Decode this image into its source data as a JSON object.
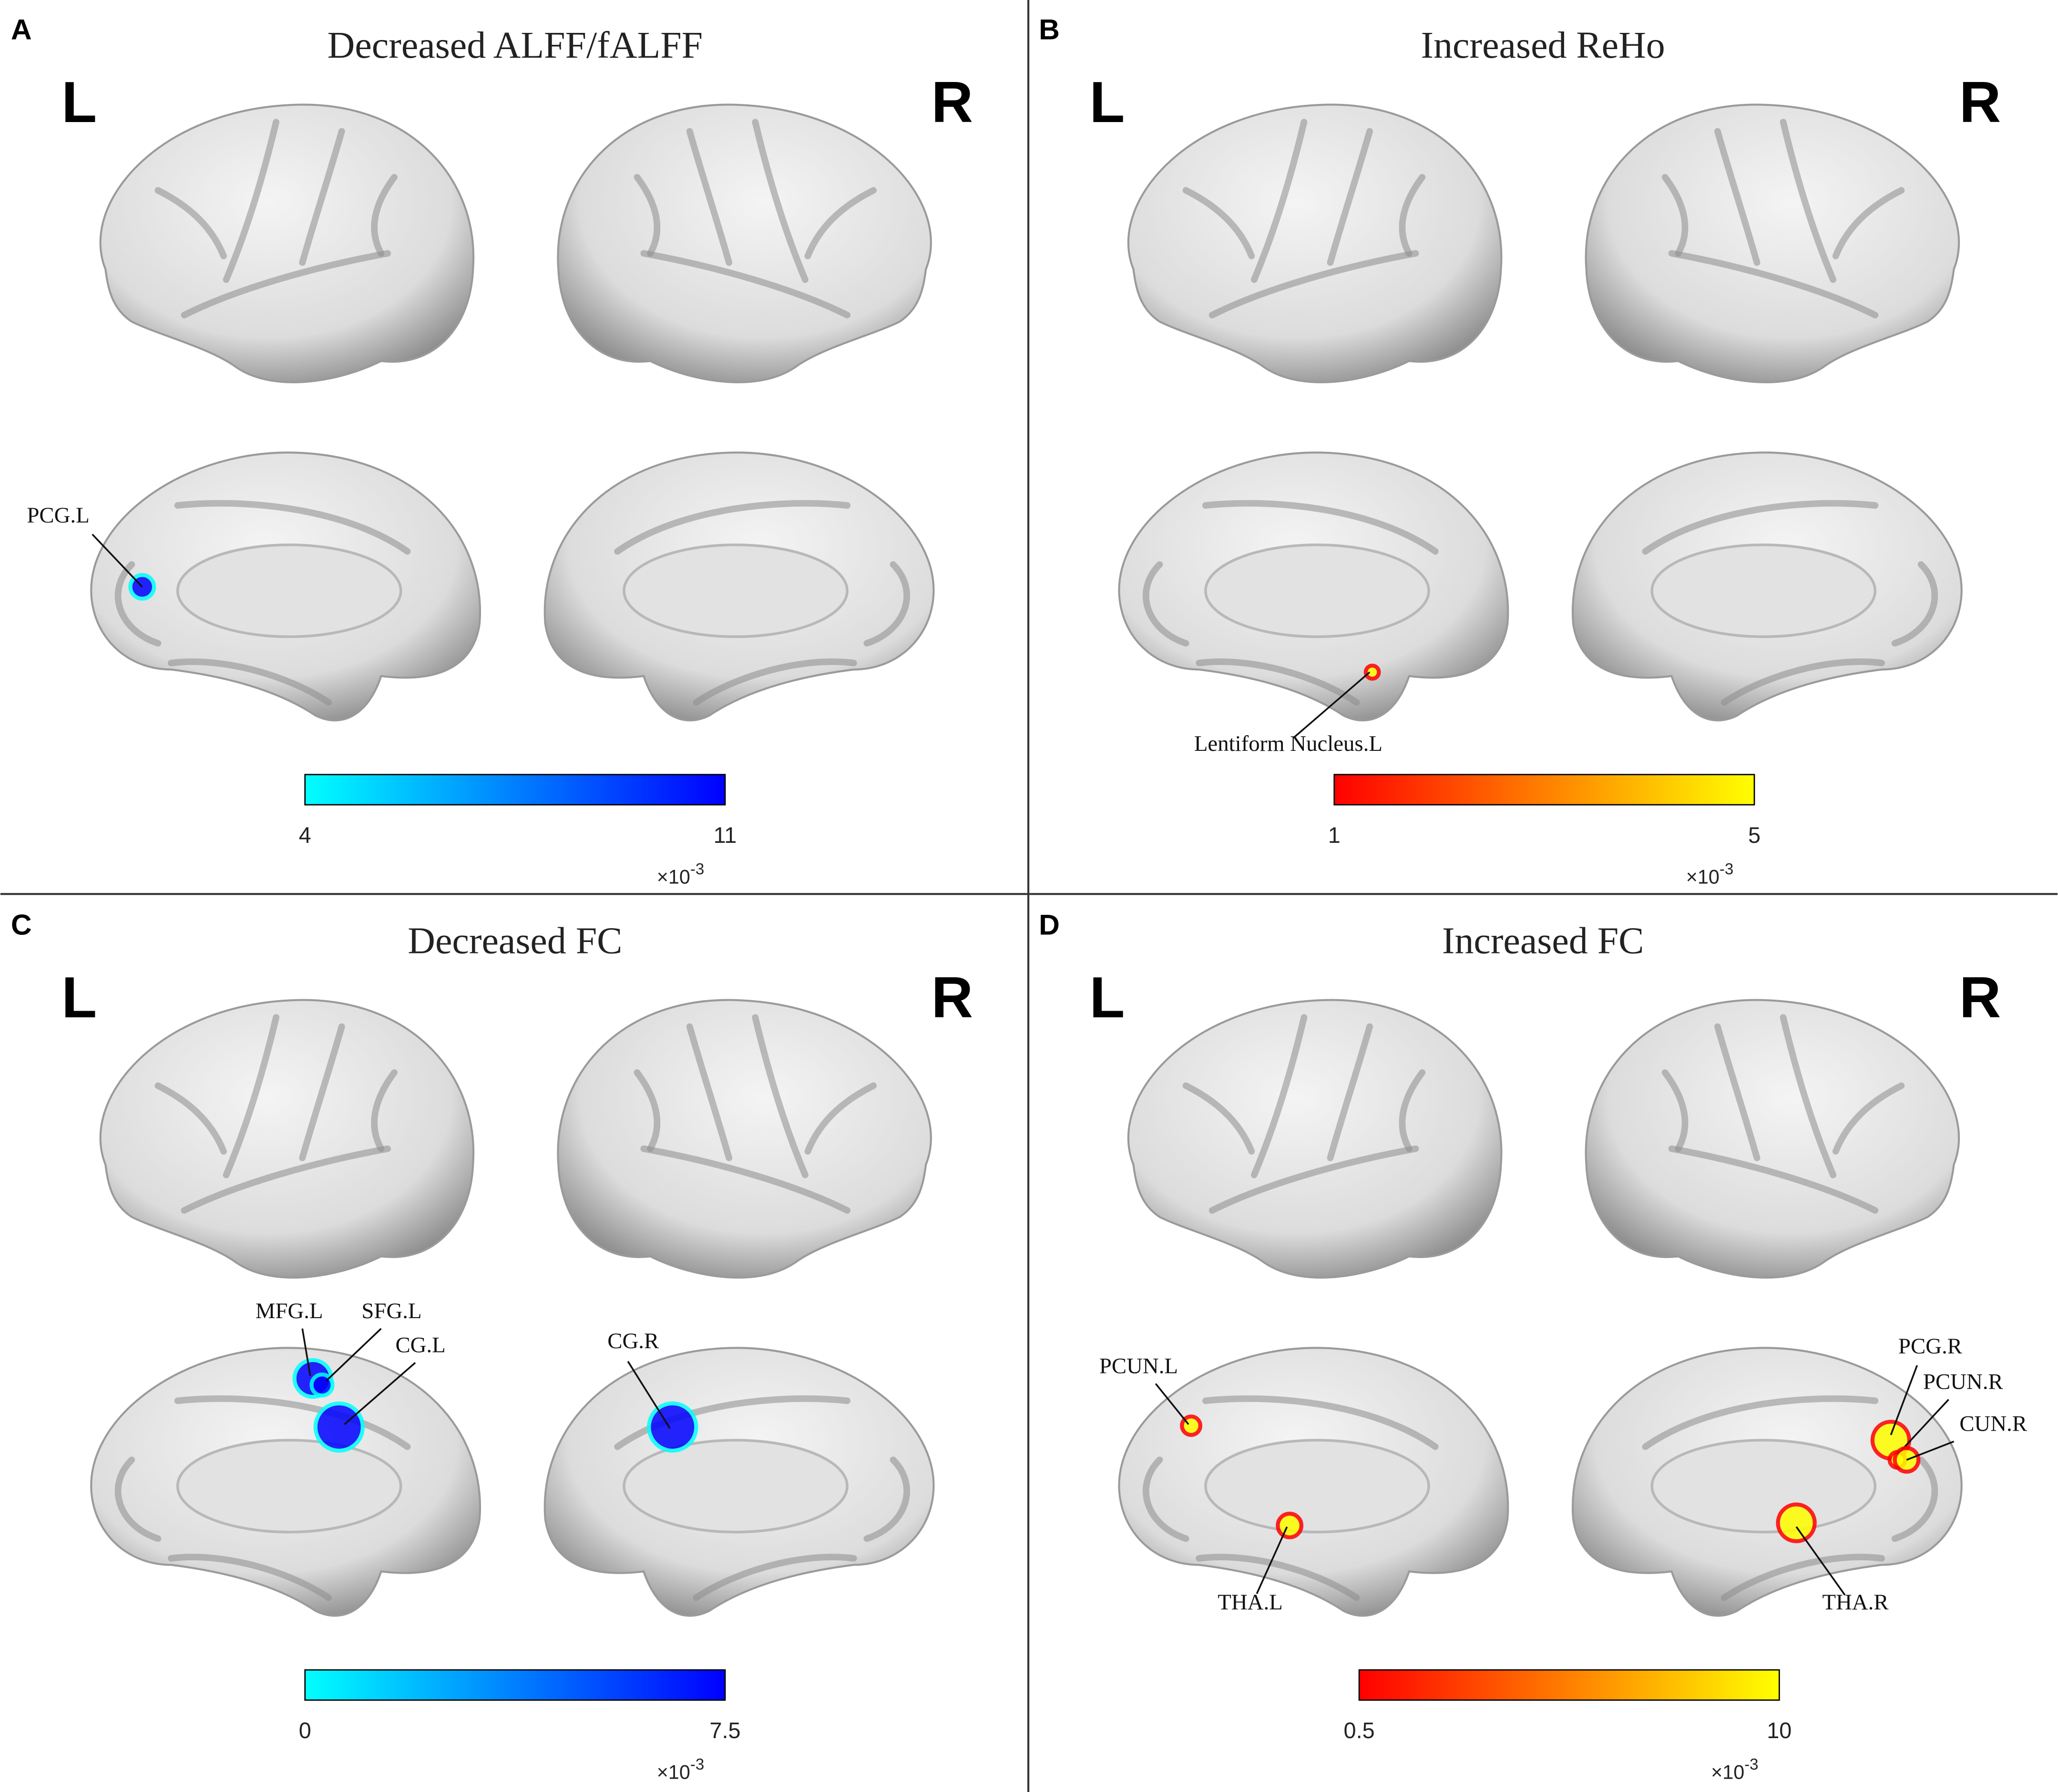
{
  "panels": [
    {
      "letter": "A",
      "title": "Decreased ALFF/fALFF",
      "left": "L",
      "right": "R",
      "regions": [
        "PCG.L"
      ],
      "colorbar": {
        "min": 4,
        "max": 11,
        "scale": "×10",
        "exponent": "-3",
        "colors": [
          "#00ffff",
          "#0000ff"
        ]
      }
    },
    {
      "letter": "B",
      "title": "Increased ReHo",
      "left": "L",
      "right": "R",
      "regions": [
        "Lentiform Nucleus.L"
      ],
      "colorbar": {
        "min": 1,
        "max": 5,
        "scale": "×10",
        "exponent": "-3",
        "colors": [
          "#ff0000",
          "#ffff00"
        ]
      }
    },
    {
      "letter": "C",
      "title": "Decreased FC",
      "left": "L",
      "right": "R",
      "regions": [
        "MFG.L",
        "SFG.L",
        "CG.L",
        "CG.R"
      ],
      "colorbar": {
        "min": 0,
        "max": 7.5,
        "scale": "×10",
        "exponent": "-3",
        "colors": [
          "#00ffff",
          "#0000ff"
        ]
      }
    },
    {
      "letter": "D",
      "title": "Increased FC",
      "left": "L",
      "right": "R",
      "regions": [
        "PCUN.L",
        "THA.L",
        "PCG.R",
        "PCUN.R",
        "CUN.R",
        "THA.R"
      ],
      "colorbar": {
        "min": 0.5,
        "max": 10,
        "scale": "×10",
        "exponent": "-3",
        "colors": [
          "#ff0000",
          "#ffff00"
        ]
      }
    }
  ]
}
